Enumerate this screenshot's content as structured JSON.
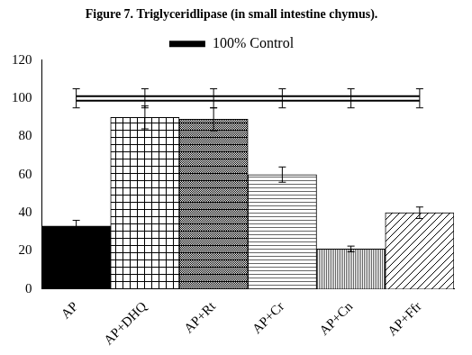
{
  "chart_data": {
    "type": "bar",
    "title": "Figure 7. Triglyceridlipase (in small intestine chymus).",
    "categories": [
      "AP",
      "AP+DHQ",
      "AP+Rt",
      "AP+Cr",
      "AP+Cn",
      "AP+Ffr"
    ],
    "series": [
      {
        "type": "bar",
        "colors": [
          "#000000",
          "#000000",
          "#000000",
          "#000000",
          "#000000",
          "#000000"
        ],
        "values": [
          33,
          90,
          89,
          60,
          21,
          40
        ],
        "errors": [
          3,
          6,
          6,
          4,
          1.5,
          3
        ]
      },
      {
        "name": "100% Control",
        "type": "line",
        "color": "#000000",
        "values": [
          100,
          100,
          100,
          100,
          100,
          100
        ],
        "errors": [
          5,
          5,
          5,
          5,
          5,
          5
        ]
      }
    ],
    "ylim": [
      0,
      120
    ],
    "yticks": [
      0,
      20,
      40,
      60,
      80,
      100,
      120
    ],
    "grid": false,
    "legend": "top"
  }
}
